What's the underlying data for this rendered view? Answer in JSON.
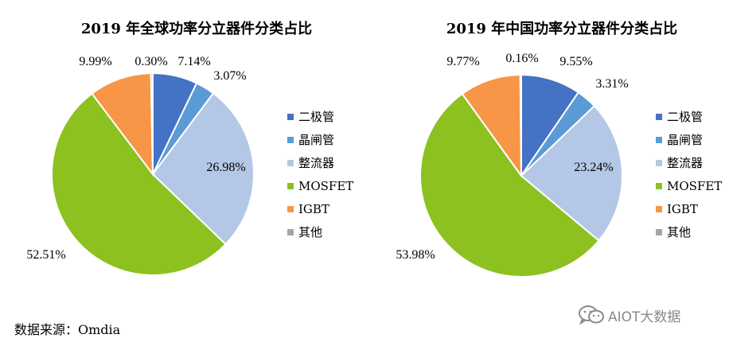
{
  "source_text": "数据来源：Omdia",
  "watermark_text": "AIOT大数据",
  "legend_labels": [
    "二极管",
    "晶闸管",
    "整流器",
    "MOSFET",
    "IGBT",
    "其他"
  ],
  "colors": [
    "#4472C4",
    "#5B9BD5",
    "#B4C7E7",
    "#8CC11F",
    "#F79646",
    "#A5A5A5"
  ],
  "chart_data": [
    {
      "type": "pie",
      "title": "2019 年全球功率分立器件分类占比",
      "categories": [
        "二极管",
        "晶闸管",
        "整流器",
        "MOSFET",
        "IGBT",
        "其他"
      ],
      "values": [
        7.14,
        3.07,
        26.98,
        52.51,
        9.99,
        0.3
      ],
      "labels": [
        "7.14%",
        "3.07%",
        "26.98%",
        "52.51%",
        "9.99%",
        "0.30%"
      ],
      "legend": "right",
      "start_angle": "12 o'clock, clockwise"
    },
    {
      "type": "pie",
      "title": "2019 年中国功率分立器件分类占比",
      "categories": [
        "二极管",
        "晶闸管",
        "整流器",
        "MOSFET",
        "IGBT",
        "其他"
      ],
      "values": [
        9.55,
        3.31,
        23.24,
        53.98,
        9.77,
        0.16
      ],
      "labels": [
        "9.55%",
        "3.31%",
        "23.24%",
        "53.98%",
        "9.77%",
        "0.16%"
      ],
      "legend": "right",
      "start_angle": "12 o'clock, clockwise"
    }
  ]
}
